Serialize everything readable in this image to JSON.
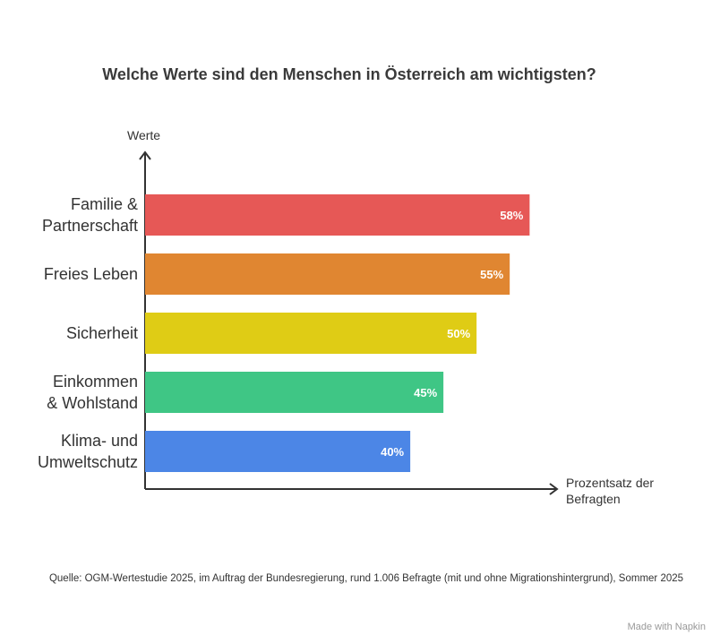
{
  "chart_data": {
    "type": "bar",
    "orientation": "horizontal",
    "title": "Welche Werte sind den Menschen in Österreich am wichtigsten?",
    "y_label": "Werte",
    "x_label": "Prozentsatz der\nBefragten",
    "categories": [
      "Familie &\nPartnerschaft",
      "Freies Leben",
      "Sicherheit",
      "Einkommen\n& Wohlstand",
      "Klima- und\nUmweltschutz"
    ],
    "values": [
      58,
      55,
      50,
      45,
      40
    ],
    "value_labels": [
      "58%",
      "55%",
      "50%",
      "45%",
      "40%"
    ],
    "colors": [
      "#e65856",
      "#e08631",
      "#dfcc15",
      "#3fc685",
      "#4c86e6"
    ],
    "xlim": [
      0,
      62
    ],
    "source": "Quelle: OGM-Wertestudie 2025, im Auftrag der Bundesregierung, rund 1.006 Befragte (mit und ohne Migrationshintergrund), Sommer 2025",
    "footer": "Made with Napkin"
  }
}
